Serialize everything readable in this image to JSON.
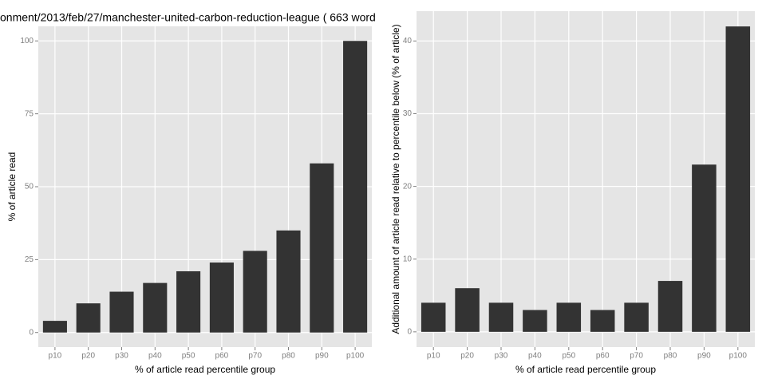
{
  "chart_data": [
    {
      "type": "bar",
      "title": "onment/2013/feb/27/manchester-united-carbon-reduction-league ( 663 word",
      "x_label": "% of article read percentile group",
      "y_label": "% of article read",
      "categories": [
        "p10",
        "p20",
        "p30",
        "p40",
        "p50",
        "p60",
        "p70",
        "p80",
        "p90",
        "p100"
      ],
      "values": [
        4,
        10,
        14,
        17,
        21,
        24,
        28,
        35,
        58,
        100
      ],
      "color": "#333333",
      "ylim": [
        -5,
        105
      ],
      "yticks": [
        0,
        25,
        50,
        75,
        100
      ],
      "grid": true
    },
    {
      "type": "bar",
      "x_label": "% of article read percentile group",
      "y_label": "Additional amount of article read relative to percentile below (% of article)",
      "categories": [
        "p10",
        "p20",
        "p30",
        "p40",
        "p50",
        "p60",
        "p70",
        "p80",
        "p90",
        "p100"
      ],
      "values": [
        4,
        6,
        4,
        3,
        4,
        3,
        4,
        7,
        23,
        42
      ],
      "color": "#333333",
      "ylim": [
        -2.1,
        44.1
      ],
      "yticks": [
        0,
        10,
        20,
        30,
        40
      ],
      "grid": true
    }
  ]
}
